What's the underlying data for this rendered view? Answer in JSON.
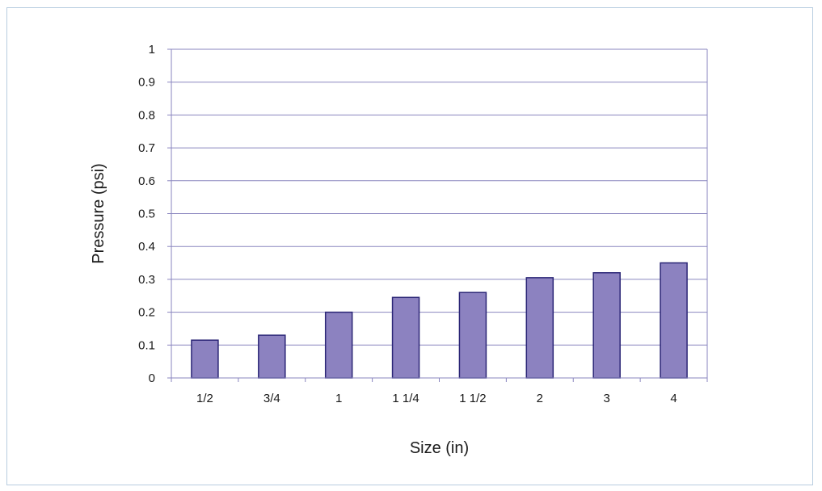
{
  "chart_data": {
    "type": "bar",
    "title": "",
    "xlabel": "Size (in)",
    "ylabel": "Pressure (psi)",
    "categories": [
      "1/2",
      "3/4",
      "1",
      "1 1/4",
      "1 1/2",
      "2",
      "3",
      "4"
    ],
    "values": [
      0.115,
      0.13,
      0.2,
      0.245,
      0.26,
      0.305,
      0.32,
      0.35
    ],
    "ylim": [
      0,
      1
    ],
    "yticks": [
      "0",
      "0.1",
      "0.2",
      "0.3",
      "0.4",
      "0.5",
      "0.6",
      "0.7",
      "0.8",
      "0.9",
      "1"
    ],
    "grid": true,
    "legend": "none",
    "colors": {
      "bar_fill": "#8c82c0",
      "bar_stroke": "#2b2676",
      "grid": "#8a86bf",
      "axis": "#8a86bf"
    }
  }
}
